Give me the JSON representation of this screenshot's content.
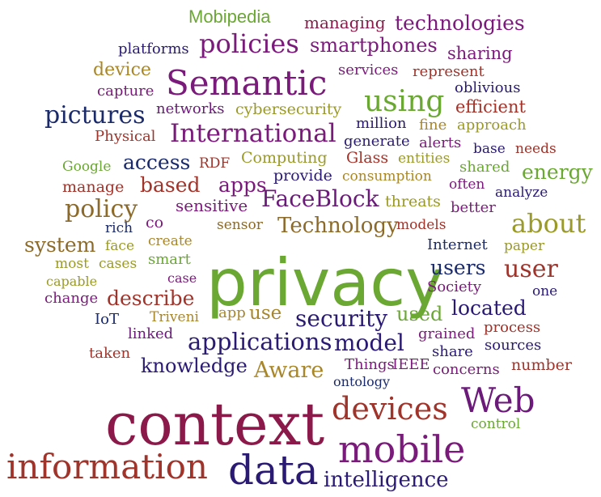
{
  "words": [
    {
      "text": "privacy",
      "color": "#6aa733"
    },
    {
      "text": "context",
      "color": "#8b1a4a"
    },
    {
      "text": "information",
      "color": "#a0332a"
    },
    {
      "text": "data",
      "color": "#2a1a73"
    },
    {
      "text": "mobile",
      "color": "#7a1a7a"
    },
    {
      "text": "Semantic",
      "color": "#7a1a7a"
    },
    {
      "text": "Web",
      "color": "#6b1a7a"
    },
    {
      "text": "devices",
      "color": "#a0332a"
    },
    {
      "text": "using",
      "color": "#6aa733"
    },
    {
      "text": "policies",
      "color": "#7a1a7a"
    },
    {
      "text": "International",
      "color": "#7a1a7a"
    },
    {
      "text": "pictures",
      "color": "#1a2a6b"
    },
    {
      "text": "applications",
      "color": "#2a1a73"
    },
    {
      "text": "FaceBlock",
      "color": "#6b1a7a"
    },
    {
      "text": "Technology",
      "color": "#8b6a2a"
    },
    {
      "text": "about",
      "color": "#9a9a2a"
    },
    {
      "text": "intelligence",
      "color": "#2a1a73"
    },
    {
      "text": "security",
      "color": "#2a1a73"
    },
    {
      "text": "model",
      "color": "#2a1a73"
    },
    {
      "text": "user",
      "color": "#a0332a"
    },
    {
      "text": "knowledge",
      "color": "#2a1a73"
    },
    {
      "text": "Aware",
      "color": "#a8862a"
    },
    {
      "text": "policy",
      "color": "#8b6a2a"
    },
    {
      "text": "system",
      "color": "#8b6a2a"
    },
    {
      "text": "describe",
      "color": "#a0332a"
    },
    {
      "text": "located",
      "color": "#2a1a73"
    },
    {
      "text": "users",
      "color": "#1a2a6b"
    },
    {
      "text": "energy",
      "color": "#6aa733"
    },
    {
      "text": "smartphones",
      "color": "#7a1a7a"
    },
    {
      "text": "technologies",
      "color": "#7a1a7a"
    },
    {
      "text": "based",
      "color": "#a0332a"
    },
    {
      "text": "access",
      "color": "#1a2a6b"
    },
    {
      "text": "apps",
      "color": "#7a1a7a"
    },
    {
      "text": "Mobipedia",
      "color": "#6aa733"
    },
    {
      "text": "managing",
      "color": "#8b1a4a"
    },
    {
      "text": "platforms",
      "color": "#2a1a73"
    },
    {
      "text": "sharing",
      "color": "#7a1a7a"
    },
    {
      "text": "device",
      "color": "#a8862a"
    },
    {
      "text": "services",
      "color": "#7a1a7a"
    },
    {
      "text": "represent",
      "color": "#a0332a"
    },
    {
      "text": "capture",
      "color": "#7a1a7a"
    },
    {
      "text": "oblivious",
      "color": "#2a1a73"
    },
    {
      "text": "networks",
      "color": "#6b1a7a"
    },
    {
      "text": "cybersecurity",
      "color": "#9a9a2a"
    },
    {
      "text": "efficient",
      "color": "#a0332a"
    },
    {
      "text": "million",
      "color": "#2a1a73"
    },
    {
      "text": "fine",
      "color": "#a8862a"
    },
    {
      "text": "approach",
      "color": "#9a9a2a"
    },
    {
      "text": "Physical",
      "color": "#a0332a"
    },
    {
      "text": "generate",
      "color": "#2a1a73"
    },
    {
      "text": "alerts",
      "color": "#7a1a7a"
    },
    {
      "text": "base",
      "color": "#2a1a73"
    },
    {
      "text": "needs",
      "color": "#a0332a"
    },
    {
      "text": "Google",
      "color": "#6aa733"
    },
    {
      "text": "RDF",
      "color": "#a0332a"
    },
    {
      "text": "Computing",
      "color": "#9a9a2a"
    },
    {
      "text": "Glass",
      "color": "#a0332a"
    },
    {
      "text": "entities",
      "color": "#9a9a2a"
    },
    {
      "text": "shared",
      "color": "#6aa733"
    },
    {
      "text": "provide",
      "color": "#2a1a73"
    },
    {
      "text": "consumption",
      "color": "#a8862a"
    },
    {
      "text": "often",
      "color": "#7a1a7a"
    },
    {
      "text": "manage",
      "color": "#a0332a"
    },
    {
      "text": "analyze",
      "color": "#2a1a73"
    },
    {
      "text": "sensitive",
      "color": "#7a1a7a"
    },
    {
      "text": "threats",
      "color": "#9a9a2a"
    },
    {
      "text": "better",
      "color": "#7a1a7a"
    },
    {
      "text": "co",
      "color": "#7a1a7a"
    },
    {
      "text": "sensor",
      "color": "#8b6a2a"
    },
    {
      "text": "models",
      "color": "#a0332a"
    },
    {
      "text": "rich",
      "color": "#1a2a6b"
    },
    {
      "text": "face",
      "color": "#9a9a2a"
    },
    {
      "text": "create",
      "color": "#a8862a"
    },
    {
      "text": "Internet",
      "color": "#1a2a6b"
    },
    {
      "text": "paper",
      "color": "#9a9a2a"
    },
    {
      "text": "most",
      "color": "#9a9a2a"
    },
    {
      "text": "cases",
      "color": "#9a9a2a"
    },
    {
      "text": "smart",
      "color": "#6aa733"
    },
    {
      "text": "capable",
      "color": "#9a9a2a"
    },
    {
      "text": "case",
      "color": "#7a1a7a"
    },
    {
      "text": "Society",
      "color": "#7a1a7a"
    },
    {
      "text": "one",
      "color": "#2a1a73"
    },
    {
      "text": "change",
      "color": "#7a1a7a"
    },
    {
      "text": "IoT",
      "color": "#1a2a6b"
    },
    {
      "text": "Triveni",
      "color": "#a8862a"
    },
    {
      "text": "app",
      "color": "#a8862a"
    },
    {
      "text": "use",
      "color": "#a8862a"
    },
    {
      "text": "used",
      "color": "#6aa733"
    },
    {
      "text": "linked",
      "color": "#6b1a7a"
    },
    {
      "text": "grained",
      "color": "#7a1a7a"
    },
    {
      "text": "process",
      "color": "#a0332a"
    },
    {
      "text": "taken",
      "color": "#a0332a"
    },
    {
      "text": "share",
      "color": "#2a1a73"
    },
    {
      "text": "sources",
      "color": "#2a1a73"
    },
    {
      "text": "Things",
      "color": "#7a1a7a"
    },
    {
      "text": "IEEE",
      "color": "#7a1a7a"
    },
    {
      "text": "number",
      "color": "#a0332a"
    },
    {
      "text": "ontology",
      "color": "#1a2a6b"
    },
    {
      "text": "concerns",
      "color": "#7a1a7a"
    },
    {
      "text": "control",
      "color": "#6aa733"
    }
  ]
}
